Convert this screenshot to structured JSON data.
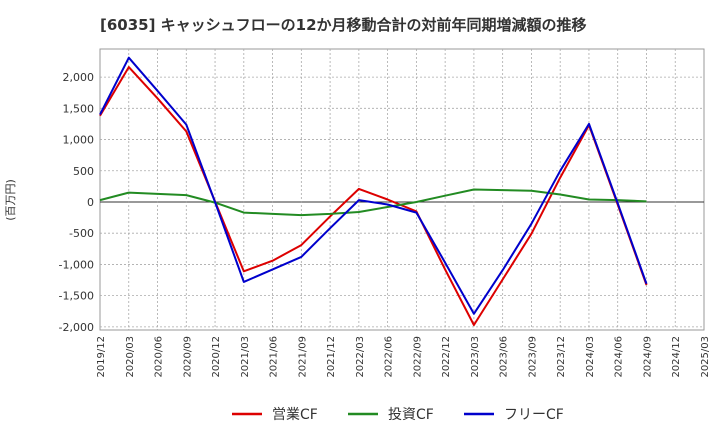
{
  "chart_data": {
    "type": "line",
    "title": "[6035]  キャッシュフローの12か月移動合計の対前年同期増減額の推移",
    "xlabel": "",
    "ylabel": "(百万円)",
    "ylim": [
      -2050,
      2450
    ],
    "yticks": [
      2000,
      1500,
      1000,
      500,
      0,
      -500,
      -1000,
      -1500,
      -2000
    ],
    "ytick_labels": [
      "2,000",
      "1,500",
      "1,000",
      "500",
      "0",
      "-500",
      "-1,000",
      "-1,500",
      "-2,000"
    ],
    "categories": [
      "2019/12",
      "2020/03",
      "2020/06",
      "2020/09",
      "2020/12",
      "2021/03",
      "2021/06",
      "2021/09",
      "2021/12",
      "2022/03",
      "2022/06",
      "2022/09",
      "2022/12",
      "2023/03",
      "2023/06",
      "2023/09",
      "2023/12",
      "2024/03",
      "2024/06",
      "2024/09",
      "2024/12",
      "2025/03"
    ],
    "grid": true,
    "legend_position": "bottom",
    "series": [
      {
        "name": "営業CF",
        "color": "#dd0000",
        "values": [
          1380,
          2160,
          1660,
          1130,
          10,
          -1110,
          -940,
          -690,
          -230,
          210,
          40,
          -150,
          -1080,
          -1970,
          -1240,
          -510,
          390,
          1230,
          -40,
          -1330,
          null,
          null
        ]
      },
      {
        "name": "投資CF",
        "color": "#228b22",
        "values": [
          30,
          150,
          130,
          110,
          -10,
          -170,
          -190,
          -210,
          -190,
          -160,
          -80,
          0,
          100,
          200,
          190,
          180,
          120,
          40,
          30,
          10,
          null,
          null
        ]
      },
      {
        "name": "フリーCF",
        "color": "#0000cc",
        "values": [
          1400,
          2310,
          1780,
          1240,
          0,
          -1280,
          -1080,
          -880,
          -420,
          30,
          -40,
          -170,
          -970,
          -1790,
          -1090,
          -350,
          500,
          1250,
          -20,
          -1310,
          null,
          null
        ]
      }
    ]
  }
}
